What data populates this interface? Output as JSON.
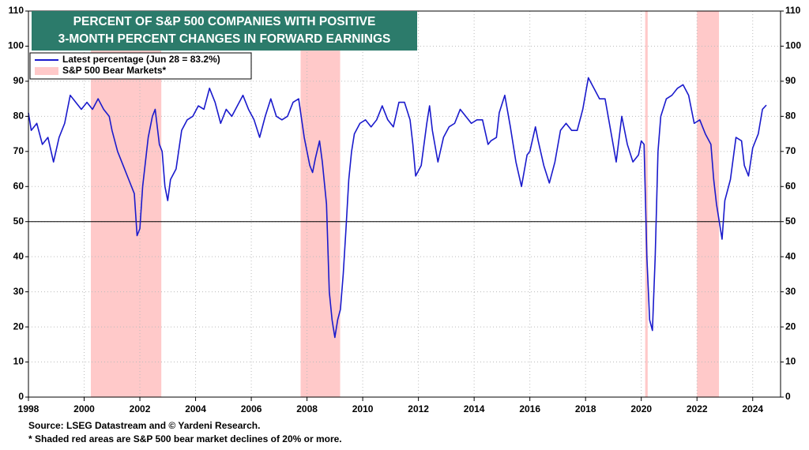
{
  "chart_data": {
    "type": "line",
    "title": "PERCENT OF S&P 500 COMPANIES WITH POSITIVE",
    "subtitle": "3-MONTH PERCENT CHANGES IN FORWARD EARNINGS",
    "source": "Source: LSEG Datastream and © Yardeni Research.",
    "footnote": "* Shaded red areas are S&P 500 bear market declines of 20% or more.",
    "xlim": [
      1998,
      2025
    ],
    "xticks": [
      1998,
      2000,
      2002,
      2004,
      2006,
      2008,
      2010,
      2012,
      2014,
      2016,
      2018,
      2020,
      2022,
      2024
    ],
    "ylim": [
      0,
      110
    ],
    "yticks": [
      0,
      10,
      20,
      30,
      40,
      50,
      60,
      70,
      80,
      90,
      100,
      110
    ],
    "y2lim": [
      0,
      110
    ],
    "y2ticks": [
      0,
      10,
      20,
      30,
      40,
      50,
      60,
      70,
      80,
      90,
      100,
      110
    ],
    "grid": true,
    "reference_line": 50,
    "bear_markets_name": "S&P 500 Bear Markets*",
    "bear_markets_color": "#ffc9c9",
    "bear_markets": [
      {
        "start": 2000.24,
        "end": 2002.77
      },
      {
        "start": 2007.77,
        "end": 2009.19
      },
      {
        "start": 2020.14,
        "end": 2020.23
      },
      {
        "start": 2022.0,
        "end": 2022.79
      }
    ],
    "x": [
      1998.0,
      1998.1,
      1998.2,
      1998.3,
      1998.5,
      1998.7,
      1998.9,
      1999.1,
      1999.3,
      1999.5,
      1999.7,
      1999.9,
      2000.1,
      2000.3,
      2000.5,
      2000.7,
      2000.9,
      2001.0,
      2001.2,
      2001.4,
      2001.6,
      2001.8,
      2001.9,
      2002.0,
      2002.1,
      2002.3,
      2002.45,
      2002.55,
      2002.7,
      2002.8,
      2002.9,
      2003.0,
      2003.1,
      2003.3,
      2003.5,
      2003.7,
      2003.9,
      2004.1,
      2004.3,
      2004.5,
      2004.7,
      2004.9,
      2005.1,
      2005.3,
      2005.5,
      2005.7,
      2005.9,
      2006.1,
      2006.3,
      2006.5,
      2006.7,
      2006.9,
      2007.1,
      2007.3,
      2007.5,
      2007.7,
      2007.9,
      2008.0,
      2008.1,
      2008.2,
      2008.3,
      2008.45,
      2008.55,
      2008.7,
      2008.8,
      2008.9,
      2009.0,
      2009.1,
      2009.2,
      2009.3,
      2009.4,
      2009.5,
      2009.6,
      2009.7,
      2009.9,
      2010.1,
      2010.3,
      2010.5,
      2010.7,
      2010.9,
      2011.1,
      2011.3,
      2011.5,
      2011.7,
      2011.8,
      2011.9,
      2012.1,
      2012.3,
      2012.4,
      2012.5,
      2012.7,
      2012.9,
      2013.1,
      2013.3,
      2013.5,
      2013.7,
      2013.9,
      2014.1,
      2014.3,
      2014.5,
      2014.6,
      2014.8,
      2014.9,
      2015.1,
      2015.3,
      2015.5,
      2015.7,
      2015.9,
      2016.0,
      2016.2,
      2016.3,
      2016.5,
      2016.7,
      2016.9,
      2017.1,
      2017.3,
      2017.5,
      2017.7,
      2017.9,
      2018.1,
      2018.3,
      2018.5,
      2018.7,
      2018.9,
      2019.1,
      2019.3,
      2019.5,
      2019.7,
      2019.9,
      2020.0,
      2020.1,
      2020.2,
      2020.3,
      2020.4,
      2020.5,
      2020.6,
      2020.7,
      2020.9,
      2021.1,
      2021.3,
      2021.5,
      2021.7,
      2021.9,
      2022.1,
      2022.3,
      2022.5,
      2022.6,
      2022.7,
      2022.8,
      2022.9,
      2023.0,
      2023.2,
      2023.4,
      2023.6,
      2023.7,
      2023.85,
      2024.0,
      2024.2,
      2024.35,
      2024.49
    ],
    "series": [
      {
        "name": "Latest percentage (Jun 28 = 83.2%)",
        "color": "#1a1acc",
        "values": [
          81,
          76,
          77,
          78,
          72,
          74,
          67,
          74,
          78,
          86,
          84,
          82,
          84,
          82,
          85,
          82,
          80,
          76,
          70,
          66,
          62,
          58,
          46,
          48,
          60,
          74,
          80,
          82,
          72,
          70,
          60,
          56,
          62,
          65,
          76,
          79,
          80,
          83,
          82,
          88,
          84,
          78,
          82,
          80,
          83,
          86,
          82,
          79,
          74,
          80,
          85,
          80,
          79,
          80,
          84,
          85,
          74,
          70,
          66,
          64,
          68,
          73,
          67,
          55,
          30,
          22,
          17,
          22,
          25,
          35,
          48,
          62,
          70,
          75,
          78,
          79,
          77,
          79,
          83,
          79,
          77,
          84,
          84,
          79,
          72,
          63,
          66,
          78,
          83,
          76,
          67,
          74,
          77,
          78,
          82,
          80,
          78,
          79,
          79,
          72,
          73,
          74,
          81,
          86,
          77,
          67,
          60,
          69,
          70,
          77,
          73,
          66,
          61,
          67,
          76,
          78,
          76,
          76,
          82,
          91,
          88,
          85,
          85,
          76,
          67,
          80,
          72,
          67,
          69,
          73,
          72,
          40,
          22,
          19,
          40,
          70,
          80,
          85,
          86,
          88,
          89,
          86,
          78,
          79,
          75,
          72,
          62,
          55,
          50,
          45,
          56,
          62,
          74,
          73,
          66,
          63,
          71,
          75,
          82,
          83.2
        ]
      }
    ]
  }
}
